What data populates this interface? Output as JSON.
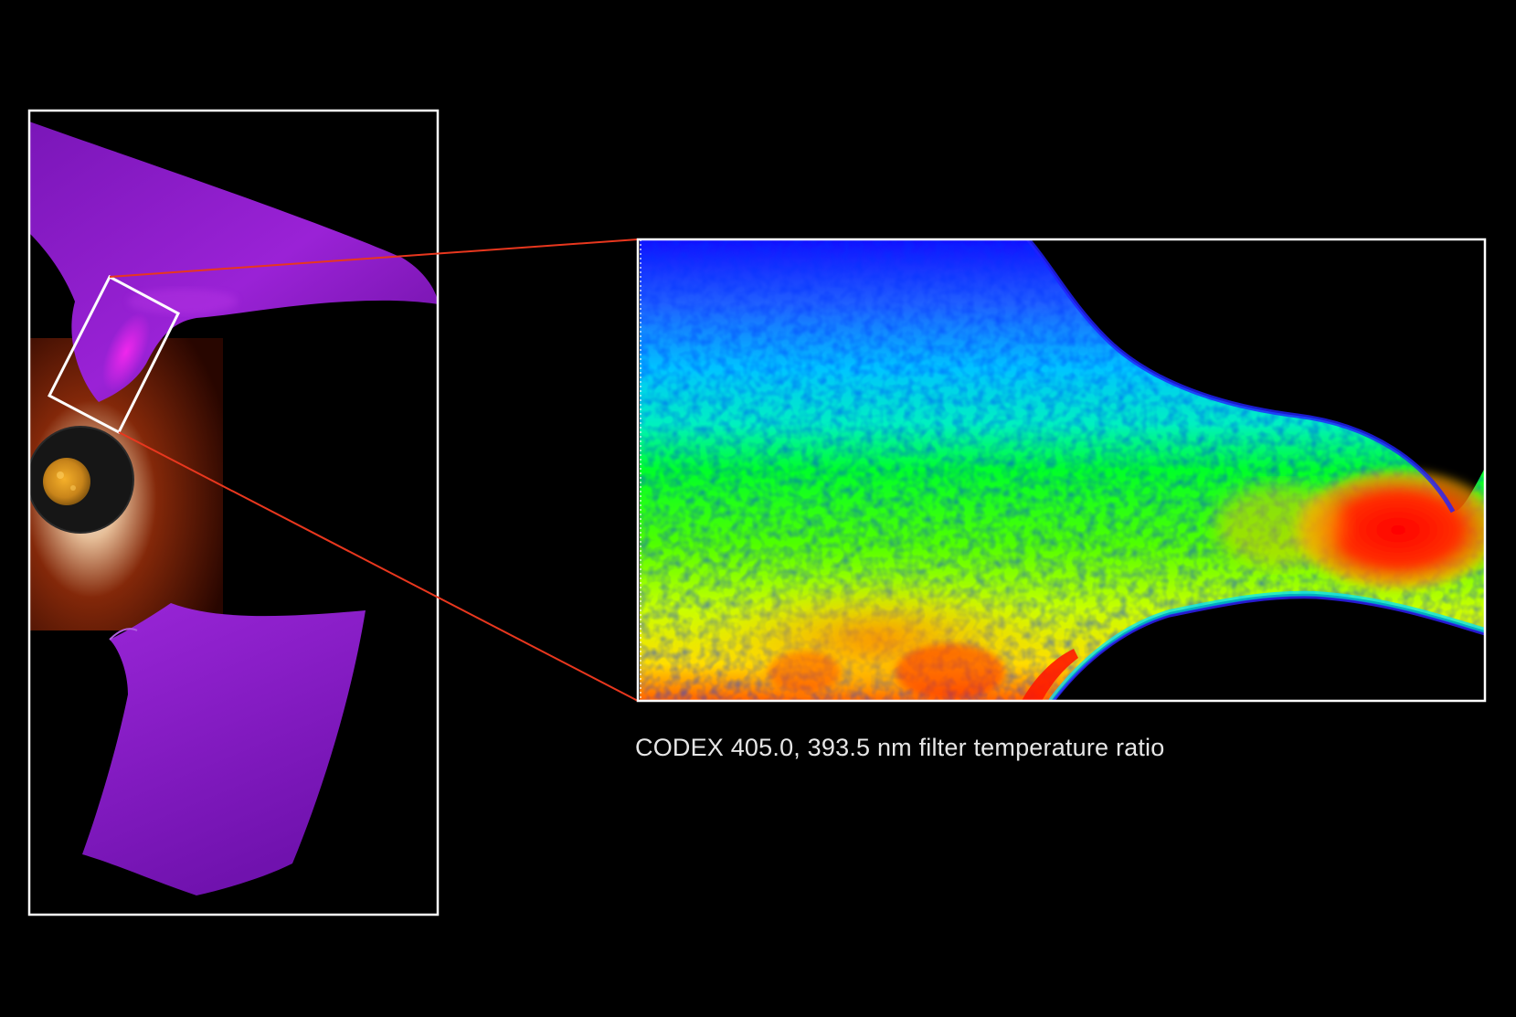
{
  "caption": "CODEX 405.0, 393.5 nm filter temperature ratio",
  "colors": {
    "background": "#000000",
    "frame": "#ffffff",
    "callout_lines": "#e8371e",
    "streamer": "#8b1fc9",
    "streamer_bright": "#e020e0",
    "sun": "#d79a1e",
    "heatmap_scale": [
      "#1a1aff",
      "#00c8ff",
      "#00ff40",
      "#ffff00",
      "#ff0000"
    ]
  },
  "icons": {
    "context_panel": "coronagraph-context-image",
    "zoom_panel": "temperature-ratio-heatmap"
  }
}
